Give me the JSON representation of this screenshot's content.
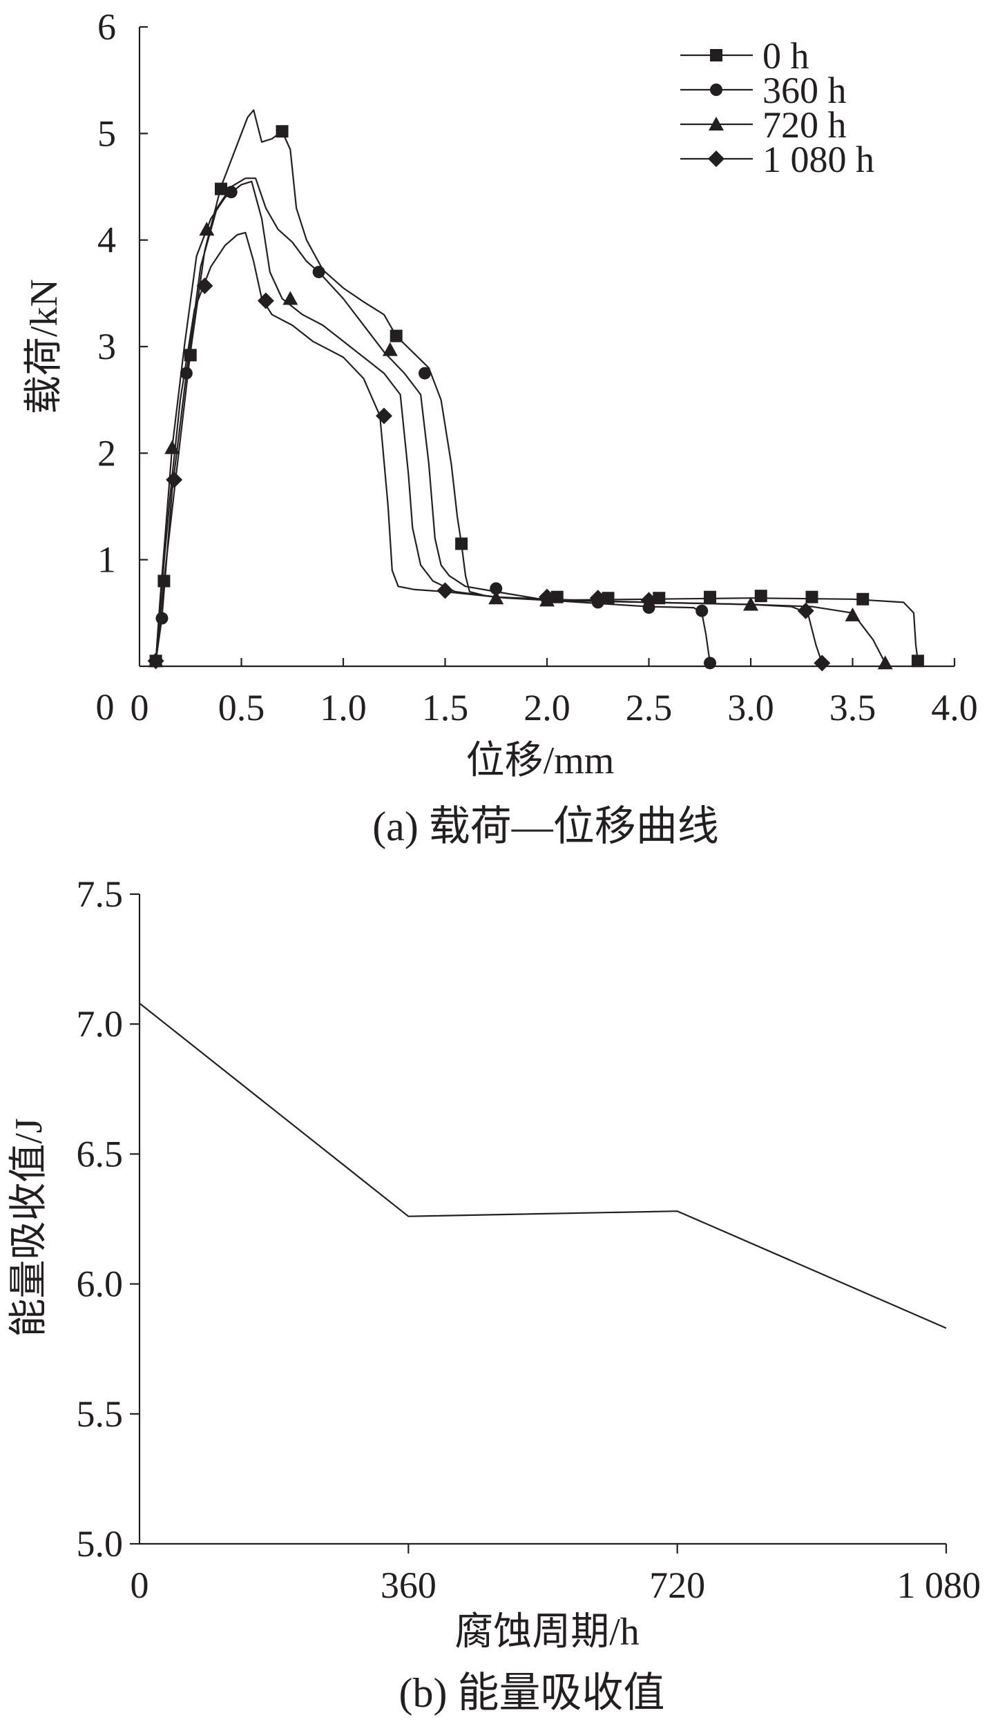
{
  "chart_data": [
    {
      "type": "line",
      "caption": "(a)  载荷—位移曲线",
      "xlabel": "位移/mm",
      "ylabel": "载荷/kN",
      "xlim": [
        0,
        4.0
      ],
      "ylim": [
        0,
        6
      ],
      "x_ticks": [
        0,
        0.5,
        1.0,
        1.5,
        2.0,
        2.5,
        3.0,
        3.5,
        4.0
      ],
      "x_tick_labels": [
        "0",
        "0.5",
        "1.0",
        "1.5",
        "2.0",
        "2.5",
        "3.0",
        "3.5",
        "4.0"
      ],
      "y_ticks": [
        1,
        2,
        3,
        4,
        5,
        6
      ],
      "y_tick_labels": [
        "1",
        "2",
        "3",
        "4",
        "5",
        "6"
      ],
      "y_zero_label": "0",
      "legend_position": "top-right",
      "series": [
        {
          "name": "0 h",
          "marker": "square",
          "x": [
            0.08,
            0.12,
            0.18,
            0.25,
            0.32,
            0.4,
            0.48,
            0.53,
            0.56,
            0.6,
            0.65,
            0.7,
            0.74,
            0.77,
            0.82,
            0.9,
            1.0,
            1.1,
            1.2,
            1.26,
            1.34,
            1.42,
            1.48,
            1.53,
            1.56,
            1.58,
            1.6,
            1.62,
            1.7,
            1.8,
            2.0,
            2.5,
            3.0,
            3.5,
            3.75,
            3.8,
            3.81,
            3.82
          ],
          "y": [
            0.05,
            0.8,
            1.8,
            2.95,
            3.9,
            4.5,
            4.9,
            5.15,
            5.22,
            4.92,
            4.95,
            5.02,
            4.85,
            4.3,
            4.0,
            3.72,
            3.55,
            3.42,
            3.3,
            3.1,
            2.95,
            2.8,
            2.5,
            1.9,
            1.4,
            1.15,
            0.85,
            0.7,
            0.66,
            0.64,
            0.62,
            0.63,
            0.64,
            0.63,
            0.6,
            0.5,
            0.2,
            0.05
          ],
          "marker_x": [
            0.08,
            0.12,
            0.25,
            0.4,
            0.7,
            1.26,
            1.58,
            2.05,
            2.3,
            2.55,
            2.8,
            3.05,
            3.3,
            3.55,
            3.82
          ],
          "marker_y": [
            0.05,
            0.8,
            2.92,
            4.48,
            5.02,
            3.1,
            1.15,
            0.65,
            0.64,
            0.64,
            0.65,
            0.66,
            0.65,
            0.63,
            0.05
          ]
        },
        {
          "name": "360 h",
          "marker": "circle",
          "x": [
            0.08,
            0.11,
            0.16,
            0.23,
            0.3,
            0.38,
            0.45,
            0.52,
            0.57,
            0.62,
            0.68,
            0.75,
            0.82,
            0.88,
            1.0,
            1.1,
            1.2,
            1.3,
            1.38,
            1.42,
            1.45,
            1.48,
            1.52,
            1.6,
            1.75,
            2.0,
            2.5,
            2.72,
            2.76,
            2.78,
            2.8
          ],
          "y": [
            0.05,
            0.45,
            1.65,
            2.75,
            3.75,
            4.3,
            4.5,
            4.58,
            4.58,
            4.3,
            4.1,
            3.98,
            3.8,
            3.7,
            3.45,
            3.2,
            2.95,
            2.75,
            2.55,
            1.9,
            1.2,
            0.95,
            0.85,
            0.75,
            0.7,
            0.62,
            0.56,
            0.55,
            0.5,
            0.3,
            0.03
          ],
          "marker_x": [
            0.11,
            0.23,
            0.45,
            0.88,
            1.4,
            1.75,
            2.0,
            2.25,
            2.5,
            2.76,
            2.8
          ],
          "marker_y": [
            0.45,
            2.75,
            4.45,
            3.7,
            2.75,
            0.73,
            0.63,
            0.6,
            0.55,
            0.52,
            0.03
          ]
        },
        {
          "name": "720 h",
          "marker": "triangle",
          "x": [
            0.08,
            0.1,
            0.16,
            0.22,
            0.28,
            0.35,
            0.42,
            0.5,
            0.55,
            0.6,
            0.64,
            0.7,
            0.8,
            0.9,
            1.0,
            1.1,
            1.2,
            1.28,
            1.32,
            1.34,
            1.38,
            1.44,
            1.55,
            1.75,
            2.0,
            2.5,
            3.0,
            3.3,
            3.5,
            3.6,
            3.66
          ],
          "y": [
            0.05,
            0.6,
            2.05,
            3.0,
            3.85,
            4.2,
            4.4,
            4.52,
            4.55,
            4.2,
            3.7,
            3.45,
            3.3,
            3.2,
            3.05,
            2.9,
            2.75,
            2.55,
            1.8,
            1.3,
            0.95,
            0.8,
            0.7,
            0.65,
            0.62,
            0.6,
            0.58,
            0.56,
            0.5,
            0.25,
            0.03
          ],
          "marker_x": [
            0.08,
            0.16,
            0.33,
            0.74,
            1.23,
            1.75,
            2.0,
            3.0,
            3.5,
            3.66
          ],
          "marker_y": [
            0.05,
            2.05,
            4.1,
            3.45,
            2.97,
            0.64,
            0.62,
            0.58,
            0.48,
            0.03
          ]
        },
        {
          "name": "1 080 h",
          "marker": "diamond",
          "x": [
            0.08,
            0.1,
            0.15,
            0.2,
            0.27,
            0.35,
            0.42,
            0.48,
            0.52,
            0.56,
            0.6,
            0.65,
            0.75,
            0.85,
            1.0,
            1.1,
            1.18,
            1.22,
            1.24,
            1.27,
            1.35,
            1.5,
            1.75,
            2.0,
            2.5,
            3.0,
            3.2,
            3.28,
            3.32,
            3.35
          ],
          "y": [
            0.05,
            0.55,
            1.6,
            2.5,
            3.35,
            3.75,
            3.95,
            4.05,
            4.07,
            3.8,
            3.45,
            3.3,
            3.2,
            3.05,
            2.9,
            2.7,
            2.35,
            1.5,
            0.9,
            0.75,
            0.72,
            0.7,
            0.65,
            0.63,
            0.6,
            0.58,
            0.56,
            0.5,
            0.2,
            0.03
          ],
          "marker_x": [
            0.08,
            0.17,
            0.32,
            0.62,
            1.2,
            1.5,
            2.0,
            2.25,
            2.5,
            3.27,
            3.35
          ],
          "marker_y": [
            0.05,
            1.75,
            3.57,
            3.43,
            2.35,
            0.71,
            0.65,
            0.64,
            0.62,
            0.52,
            0.03
          ]
        }
      ]
    },
    {
      "type": "line",
      "caption": "(b)  能量吸收值",
      "xlabel": "腐蚀周期/h",
      "ylabel": "能量吸收值/J",
      "categories": [
        "0",
        "360",
        "720",
        "1 080"
      ],
      "ylim": [
        5.0,
        7.5
      ],
      "y_ticks": [
        5.0,
        5.5,
        6.0,
        6.5,
        7.0,
        7.5
      ],
      "y_tick_labels": [
        "5.0",
        "5.5",
        "6.0",
        "6.5",
        "7.0",
        "7.5"
      ],
      "series": [
        {
          "values": [
            7.08,
            6.26,
            6.28,
            5.83
          ]
        }
      ]
    }
  ]
}
